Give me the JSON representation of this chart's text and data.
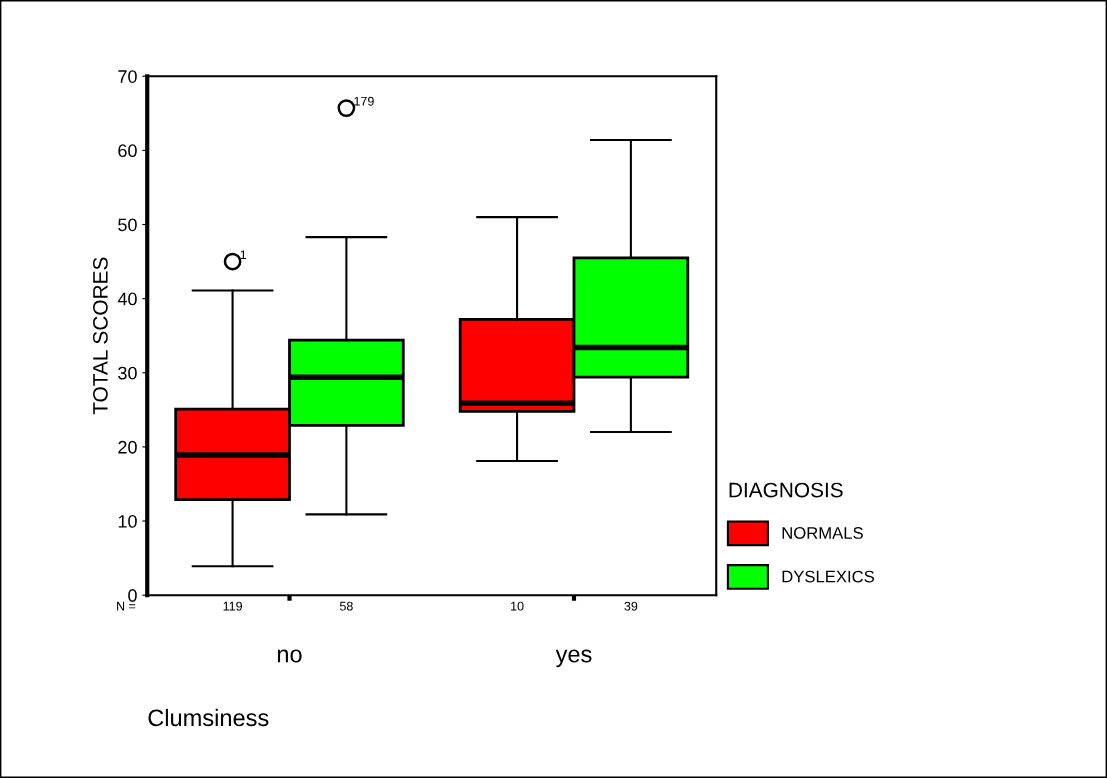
{
  "chart_data": {
    "type": "box",
    "ylabel": "TOTAL SCORES",
    "xlabel": "Clumsiness",
    "legend_title": "DIAGNOSIS",
    "legend": "right",
    "categories": [
      "no",
      "yes"
    ],
    "ylim": [
      0,
      70
    ],
    "yticks": [
      0,
      10,
      20,
      30,
      40,
      50,
      60,
      70
    ],
    "grid": false,
    "series": [
      {
        "name": "NORMALS",
        "color": "#ff0000",
        "boxes": [
          {
            "low": 3.9,
            "q1": 12.9,
            "median": 18.9,
            "q3": 25.1,
            "high": 41.1,
            "outliers": [
              45.0
            ]
          },
          {
            "low": 18.1,
            "q1": 24.8,
            "median": 25.9,
            "q3": 37.2,
            "high": 51.0
          }
        ]
      },
      {
        "name": "DYSLEXICS",
        "color": "#00ff00",
        "boxes": [
          {
            "low": 10.9,
            "q1": 22.9,
            "median": 29.4,
            "q3": 34.4,
            "high": 48.3,
            "outliers": [
              65.7
            ]
          },
          {
            "low": 22.0,
            "q1": 29.4,
            "median": 33.4,
            "q3": 45.5,
            "high": 61.4
          }
        ]
      }
    ],
    "annotations": [
      "N =",
      "119",
      "58",
      "10",
      "39",
      "1",
      "179"
    ]
  }
}
